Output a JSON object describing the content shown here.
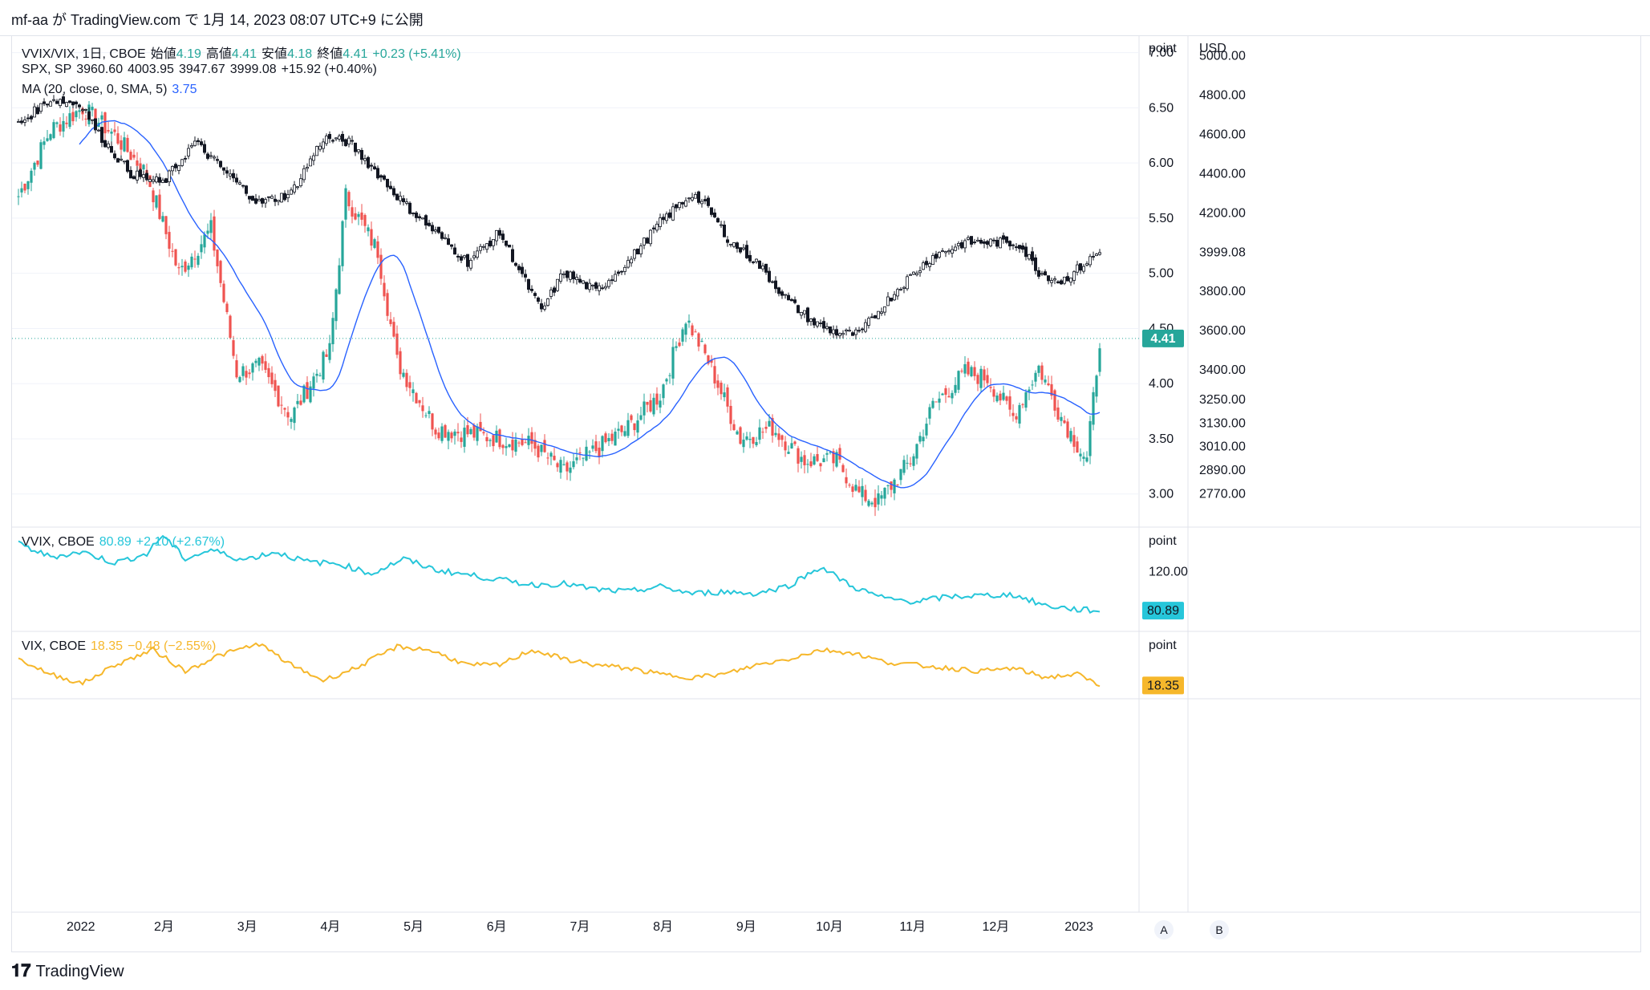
{
  "header": {
    "publish_line": "mf-aa が TradingView.com で 1月 14, 2023 08:07 UTC+9 に公開"
  },
  "footer": {
    "brand": "TradingView"
  },
  "colors": {
    "up": "#26a69a",
    "down": "#ef5350",
    "spx": "#131722",
    "ma": "#2962ff",
    "vvix": "#26c6da",
    "vix": "#f6b72b",
    "grid": "#f0f3fa"
  },
  "legend": {
    "main": {
      "symbol": "VVIX/VIX, 1日, CBOE",
      "open_label": "始値",
      "open": "4.19",
      "high_label": "高値",
      "high": "4.41",
      "low_label": "安値",
      "low": "4.18",
      "close_label": "終値",
      "close": "4.41",
      "change": "+0.23 (+5.41%)"
    },
    "spx": {
      "symbol": "SPX, SP",
      "o": "3960.60",
      "h": "4003.95",
      "l": "3947.67",
      "c": "3999.08",
      "change": "+15.92 (+0.40%)"
    },
    "ma": {
      "label": "MA (20, close, 0, SMA, 5)",
      "value": "3.75"
    },
    "vvix": {
      "symbol": "VVIX, CBOE",
      "value": "80.89",
      "change": "+2.10 (+2.67%)"
    },
    "vix": {
      "symbol": "VIX, CBOE",
      "value": "18.35",
      "change": "−0.48 (−2.55%)"
    }
  },
  "axes": {
    "left_unit": "point",
    "right_unit": "USD",
    "vvix_unit": "point",
    "vix_unit": "point",
    "corner_a": "A",
    "corner_b": "B"
  },
  "chart_data": [
    {
      "type": "candlestick",
      "name": "VVIX/VIX",
      "ylim": [
        2.7,
        7.15
      ],
      "yticks": [
        "7.00",
        "6.50",
        "6.00",
        "5.50",
        "5.00",
        "4.50",
        "4.00",
        "3.50",
        "3.00"
      ],
      "last": "4.41",
      "key_points": [
        [
          0,
          5.7
        ],
        [
          10,
          6.3
        ],
        [
          20,
          6.5
        ],
        [
          30,
          6.25
        ],
        [
          40,
          5.9
        ],
        [
          50,
          5.0
        ],
        [
          60,
          5.4
        ],
        [
          68,
          4.1
        ],
        [
          75,
          4.15
        ],
        [
          85,
          3.7
        ],
        [
          97,
          4.3
        ],
        [
          102,
          5.7
        ],
        [
          112,
          5.2
        ],
        [
          118,
          4.2
        ],
        [
          130,
          3.6
        ],
        [
          140,
          3.55
        ],
        [
          150,
          3.5
        ],
        [
          160,
          3.45
        ],
        [
          170,
          3.2
        ],
        [
          180,
          3.4
        ],
        [
          190,
          3.6
        ],
        [
          200,
          3.9
        ],
        [
          208,
          4.6
        ],
        [
          215,
          4.2
        ],
        [
          225,
          3.5
        ],
        [
          235,
          3.6
        ],
        [
          245,
          3.3
        ],
        [
          255,
          3.3
        ],
        [
          262,
          3.0
        ],
        [
          268,
          2.93
        ],
        [
          278,
          3.3
        ],
        [
          285,
          3.8
        ],
        [
          295,
          4.1
        ],
        [
          302,
          4.05
        ],
        [
          310,
          3.7
        ],
        [
          318,
          4.15
        ],
        [
          325,
          3.7
        ],
        [
          333,
          3.3
        ],
        [
          337,
          4.41
        ]
      ]
    },
    {
      "type": "candlestick",
      "name": "SPX",
      "ylim": [
        2600,
        5100
      ],
      "yticks": [
        "5000.00",
        "4800.00",
        "4600.00",
        "4400.00",
        "4200.00",
        "3800.00",
        "3600.00",
        "3400.00",
        "3250.00",
        "3130.00",
        "3010.00",
        "2890.00",
        "2770.00"
      ],
      "last": "3999.08",
      "key_points": [
        [
          0,
          4650
        ],
        [
          10,
          4780
        ],
        [
          20,
          4750
        ],
        [
          25,
          4600
        ],
        [
          35,
          4400
        ],
        [
          45,
          4350
        ],
        [
          55,
          4560
        ],
        [
          65,
          4400
        ],
        [
          75,
          4250
        ],
        [
          85,
          4300
        ],
        [
          95,
          4580
        ],
        [
          103,
          4560
        ],
        [
          112,
          4400
        ],
        [
          120,
          4250
        ],
        [
          130,
          4100
        ],
        [
          140,
          3950
        ],
        [
          150,
          4100
        ],
        [
          158,
          3850
        ],
        [
          163,
          3700
        ],
        [
          170,
          3900
        ],
        [
          180,
          3800
        ],
        [
          190,
          3950
        ],
        [
          200,
          4150
        ],
        [
          210,
          4300
        ],
        [
          215,
          4220
        ],
        [
          222,
          4050
        ],
        [
          230,
          3950
        ],
        [
          240,
          3750
        ],
        [
          248,
          3640
        ],
        [
          255,
          3590
        ],
        [
          262,
          3580
        ],
        [
          268,
          3700
        ],
        [
          275,
          3830
        ],
        [
          285,
          3980
        ],
        [
          295,
          4050
        ],
        [
          305,
          4050
        ],
        [
          312,
          4040
        ],
        [
          318,
          3900
        ],
        [
          325,
          3850
        ],
        [
          333,
          3950
        ],
        [
          337,
          3999
        ]
      ]
    },
    {
      "type": "line",
      "name": "VVIX",
      "ylim": [
        60,
        165
      ],
      "yticks": [
        "120.00"
      ],
      "last": "80.89",
      "key_points": [
        [
          0,
          148
        ],
        [
          10,
          135
        ],
        [
          20,
          140
        ],
        [
          30,
          129
        ],
        [
          40,
          138
        ],
        [
          45,
          157
        ],
        [
          52,
          133
        ],
        [
          60,
          142
        ],
        [
          70,
          132
        ],
        [
          80,
          140
        ],
        [
          90,
          130
        ],
        [
          100,
          128
        ],
        [
          110,
          118
        ],
        [
          120,
          133
        ],
        [
          130,
          122
        ],
        [
          140,
          117
        ],
        [
          150,
          112
        ],
        [
          160,
          107
        ],
        [
          170,
          108
        ],
        [
          180,
          102
        ],
        [
          190,
          100
        ],
        [
          200,
          105
        ],
        [
          210,
          98
        ],
        [
          220,
          100
        ],
        [
          230,
          98
        ],
        [
          240,
          106
        ],
        [
          250,
          125
        ],
        [
          260,
          105
        ],
        [
          270,
          93
        ],
        [
          280,
          90
        ],
        [
          290,
          95
        ],
        [
          300,
          96
        ],
        [
          310,
          97
        ],
        [
          320,
          86
        ],
        [
          330,
          82
        ],
        [
          337,
          80.89
        ]
      ]
    },
    {
      "type": "line",
      "name": "VIX",
      "ylim": [
        14,
        36
      ],
      "yticks": [],
      "last": "18.35",
      "key_points": [
        [
          0,
          27
        ],
        [
          10,
          22
        ],
        [
          20,
          19
        ],
        [
          30,
          25
        ],
        [
          42,
          30
        ],
        [
          52,
          23
        ],
        [
          62,
          28
        ],
        [
          75,
          32
        ],
        [
          85,
          25
        ],
        [
          95,
          20
        ],
        [
          105,
          24
        ],
        [
          118,
          31
        ],
        [
          128,
          30
        ],
        [
          140,
          25
        ],
        [
          150,
          25
        ],
        [
          160,
          30
        ],
        [
          170,
          27
        ],
        [
          180,
          25
        ],
        [
          190,
          24
        ],
        [
          200,
          22
        ],
        [
          210,
          21
        ],
        [
          220,
          22
        ],
        [
          230,
          25
        ],
        [
          240,
          27
        ],
        [
          250,
          30
        ],
        [
          260,
          29
        ],
        [
          270,
          26
        ],
        [
          280,
          25
        ],
        [
          290,
          24
        ],
        [
          300,
          23
        ],
        [
          310,
          24
        ],
        [
          320,
          21
        ],
        [
          330,
          22
        ],
        [
          337,
          18.35
        ]
      ]
    }
  ],
  "x_axis_labels": [
    "2022",
    "2月",
    "3月",
    "4月",
    "5月",
    "6月",
    "7月",
    "8月",
    "9月",
    "10月",
    "11月",
    "12月",
    "2023"
  ]
}
